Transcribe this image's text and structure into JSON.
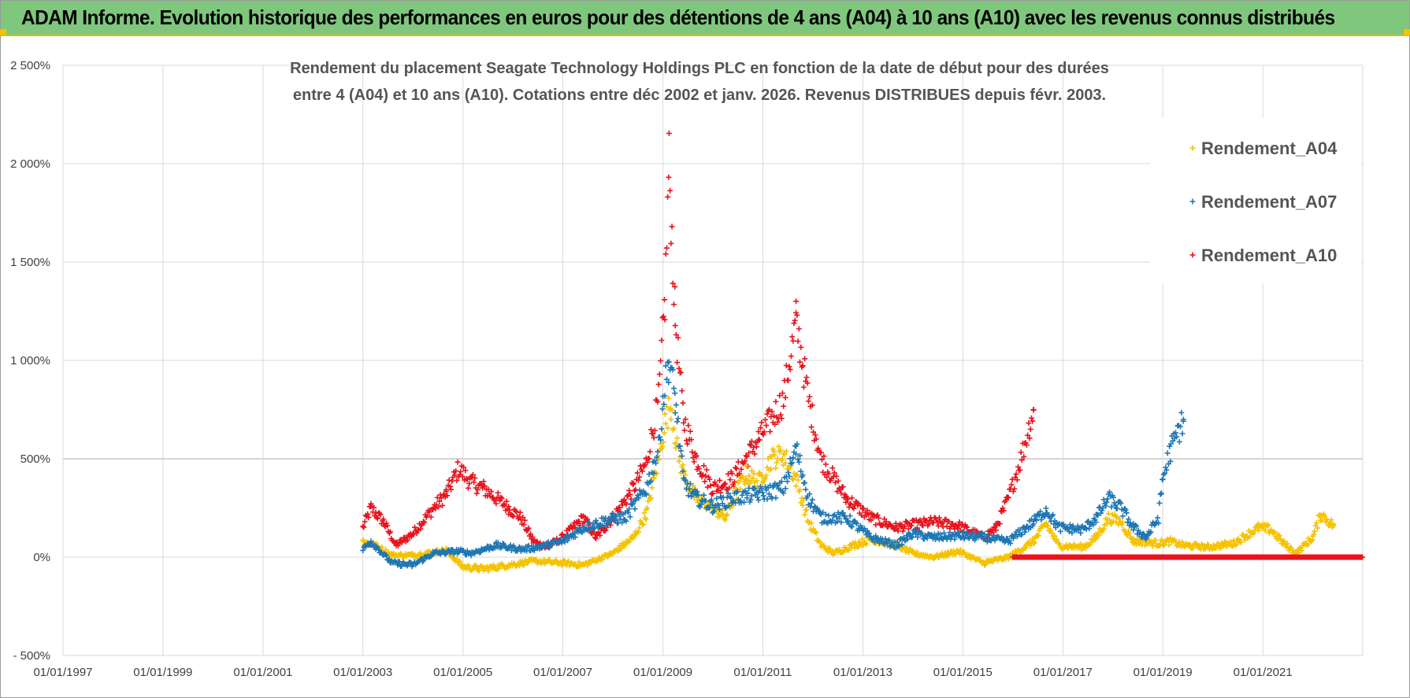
{
  "header": {
    "title": "ADAM Informe. Evolution historique des performances en euros pour des détentions de 4 ans (A04) à 10 ans (A10) avec les revenus connus distribués"
  },
  "colors": {
    "banner": "#7fc77d",
    "banner_border": "#e6b800",
    "A04": "#f5c200",
    "A07": "#1f77b4",
    "A10": "#e8141e"
  },
  "chart_data": {
    "type": "scatter",
    "title": "Rendement du placement Seagate Technology Holdings PLC en fonction de la date de début pour des durées entre 4 (A04) et 10 ans (A10). Cotations entre déc 2002 et janv. 2026. Revenus DISTRIBUES depuis févr. 2003.",
    "title_lines": [
      "Rendement du placement Seagate Technology Holdings PLC en fonction de la date de début pour des durées",
      "entre 4 (A04) et 10 ans (A10).  Cotations entre déc 2002 et janv. 2026.  Revenus DISTRIBUES depuis févr. 2003."
    ],
    "xlabel": "",
    "ylabel": "",
    "x_ticks": [
      "01/01/1997",
      "01/01/1999",
      "01/01/2001",
      "01/01/2003",
      "01/01/2005",
      "01/01/2007",
      "01/01/2009",
      "01/01/2011",
      "01/01/2013",
      "01/01/2015",
      "01/01/2017",
      "01/01/2019",
      "01/01/2021"
    ],
    "xlim": [
      "1997-01-01",
      "2023-01-01"
    ],
    "y_ticks": [
      "2 500%",
      "2 000%",
      "1 500%",
      "1 000%",
      "500%",
      "0%",
      "- 500%"
    ],
    "ylim": [
      -500,
      2500
    ],
    "grid": true,
    "legend_position": "right",
    "series": [
      {
        "name": "Rendement_A04",
        "marker": "+",
        "color": "#f5c200",
        "points": [
          [
            "2003-01-01",
            80
          ],
          [
            "2003-04-01",
            60
          ],
          [
            "2003-08-01",
            10
          ],
          [
            "2004-01-01",
            10
          ],
          [
            "2004-06-01",
            25
          ],
          [
            "2004-09-01",
            35
          ],
          [
            "2005-01-01",
            -50
          ],
          [
            "2005-06-01",
            -60
          ],
          [
            "2005-12-01",
            -40
          ],
          [
            "2006-06-01",
            -20
          ],
          [
            "2007-01-01",
            -30
          ],
          [
            "2007-06-01",
            -40
          ],
          [
            "2008-01-01",
            20
          ],
          [
            "2008-06-01",
            100
          ],
          [
            "2008-09-01",
            220
          ],
          [
            "2008-12-01",
            500
          ],
          [
            "2009-01-15",
            680
          ],
          [
            "2009-03-01",
            780
          ],
          [
            "2009-04-15",
            550
          ],
          [
            "2009-06-01",
            420
          ],
          [
            "2009-09-01",
            300
          ],
          [
            "2010-01-01",
            250
          ],
          [
            "2010-04-01",
            200
          ],
          [
            "2010-06-01",
            300
          ],
          [
            "2010-09-01",
            420
          ],
          [
            "2010-12-01",
            380
          ],
          [
            "2011-03-01",
            500
          ],
          [
            "2011-06-01",
            520
          ],
          [
            "2011-09-01",
            400
          ],
          [
            "2011-12-01",
            180
          ],
          [
            "2012-03-01",
            60
          ],
          [
            "2012-06-01",
            20
          ],
          [
            "2012-12-01",
            70
          ],
          [
            "2013-03-01",
            90
          ],
          [
            "2013-09-01",
            60
          ],
          [
            "2014-01-01",
            20
          ],
          [
            "2014-06-01",
            0
          ],
          [
            "2014-12-01",
            30
          ],
          [
            "2015-06-01",
            -30
          ],
          [
            "2015-12-01",
            0
          ],
          [
            "2016-03-01",
            40
          ],
          [
            "2016-06-01",
            80
          ],
          [
            "2016-09-01",
            170
          ],
          [
            "2016-12-01",
            60
          ],
          [
            "2017-06-01",
            50
          ],
          [
            "2017-09-01",
            100
          ],
          [
            "2017-12-01",
            200
          ],
          [
            "2018-03-01",
            180
          ],
          [
            "2018-06-01",
            80
          ],
          [
            "2018-12-01",
            70
          ],
          [
            "2019-03-01",
            80
          ],
          [
            "2019-06-01",
            60
          ],
          [
            "2019-12-01",
            50
          ],
          [
            "2020-06-01",
            70
          ],
          [
            "2020-12-01",
            150
          ],
          [
            "2021-03-01",
            140
          ],
          [
            "2021-06-01",
            70
          ],
          [
            "2021-09-01",
            20
          ],
          [
            "2022-01-01",
            100
          ],
          [
            "2022-03-01",
            220
          ],
          [
            "2022-06-01",
            160
          ]
        ]
      },
      {
        "name": "Rendement_A07",
        "marker": "+",
        "color": "#1f77b4",
        "points": [
          [
            "2003-01-01",
            40
          ],
          [
            "2003-03-01",
            80
          ],
          [
            "2003-08-01",
            -30
          ],
          [
            "2004-01-01",
            -40
          ],
          [
            "2004-06-01",
            20
          ],
          [
            "2004-12-01",
            30
          ],
          [
            "2005-03-01",
            20
          ],
          [
            "2005-09-01",
            60
          ],
          [
            "2006-03-01",
            40
          ],
          [
            "2006-07-01",
            50
          ],
          [
            "2007-01-01",
            80
          ],
          [
            "2007-06-01",
            150
          ],
          [
            "2007-12-01",
            190
          ],
          [
            "2008-04-01",
            200
          ],
          [
            "2008-09-01",
            350
          ],
          [
            "2008-12-01",
            550
          ],
          [
            "2009-01-01",
            800
          ],
          [
            "2009-02-15",
            1000
          ],
          [
            "2009-04-01",
            800
          ],
          [
            "2009-06-01",
            380
          ],
          [
            "2009-09-01",
            300
          ],
          [
            "2010-01-01",
            260
          ],
          [
            "2010-06-01",
            300
          ],
          [
            "2010-12-01",
            320
          ],
          [
            "2011-06-01",
            350
          ],
          [
            "2011-09-01",
            550
          ],
          [
            "2011-12-01",
            300
          ],
          [
            "2012-03-01",
            200
          ],
          [
            "2012-09-01",
            200
          ],
          [
            "2013-03-01",
            100
          ],
          [
            "2013-09-01",
            60
          ],
          [
            "2014-01-01",
            120
          ],
          [
            "2014-06-01",
            100
          ],
          [
            "2014-12-01",
            110
          ],
          [
            "2015-06-01",
            100
          ],
          [
            "2015-12-01",
            80
          ],
          [
            "2016-06-01",
            180
          ],
          [
            "2016-09-01",
            240
          ],
          [
            "2016-12-01",
            150
          ],
          [
            "2017-06-01",
            140
          ],
          [
            "2017-09-01",
            200
          ],
          [
            "2017-12-01",
            300
          ],
          [
            "2018-03-01",
            250
          ],
          [
            "2018-06-01",
            150
          ],
          [
            "2018-09-01",
            100
          ],
          [
            "2018-12-01",
            200
          ],
          [
            "2019-01-01",
            400
          ],
          [
            "2019-03-01",
            550
          ],
          [
            "2019-06-01",
            700
          ]
        ]
      },
      {
        "name": "Rendement_A10",
        "marker": "+",
        "color": "#e8141e",
        "points": [
          [
            "2003-01-01",
            150
          ],
          [
            "2003-03-01",
            250
          ],
          [
            "2003-06-01",
            180
          ],
          [
            "2003-09-01",
            60
          ],
          [
            "2004-01-01",
            120
          ],
          [
            "2004-06-01",
            250
          ],
          [
            "2004-09-01",
            320
          ],
          [
            "2004-12-01",
            450
          ],
          [
            "2005-03-01",
            380
          ],
          [
            "2005-06-01",
            350
          ],
          [
            "2005-12-01",
            250
          ],
          [
            "2006-03-01",
            200
          ],
          [
            "2006-06-01",
            80
          ],
          [
            "2006-09-01",
            50
          ],
          [
            "2007-01-01",
            100
          ],
          [
            "2007-06-01",
            200
          ],
          [
            "2007-09-01",
            100
          ],
          [
            "2008-01-01",
            200
          ],
          [
            "2008-06-01",
            350
          ],
          [
            "2008-09-01",
            480
          ],
          [
            "2008-12-01",
            800
          ],
          [
            "2009-01-15",
            1300
          ],
          [
            "2009-02-15",
            2000
          ],
          [
            "2009-04-01",
            1200
          ],
          [
            "2009-06-01",
            700
          ],
          [
            "2009-09-01",
            500
          ],
          [
            "2010-01-01",
            350
          ],
          [
            "2010-06-01",
            400
          ],
          [
            "2010-12-01",
            600
          ],
          [
            "2011-06-01",
            800
          ],
          [
            "2011-09-01",
            1200
          ],
          [
            "2011-12-01",
            800
          ],
          [
            "2012-03-01",
            500
          ],
          [
            "2012-09-01",
            300
          ],
          [
            "2013-03-01",
            200
          ],
          [
            "2013-09-01",
            150
          ],
          [
            "2014-06-01",
            180
          ],
          [
            "2014-12-01",
            160
          ],
          [
            "2015-06-01",
            100
          ],
          [
            "2015-09-01",
            150
          ],
          [
            "2015-12-01",
            300
          ],
          [
            "2016-03-01",
            500
          ],
          [
            "2016-06-01",
            750
          ]
        ]
      }
    ],
    "flat_segments": [
      {
        "series": "Rendement_A10",
        "from": "2016-01-01",
        "to": "2023-01-01",
        "value": 0
      }
    ]
  }
}
